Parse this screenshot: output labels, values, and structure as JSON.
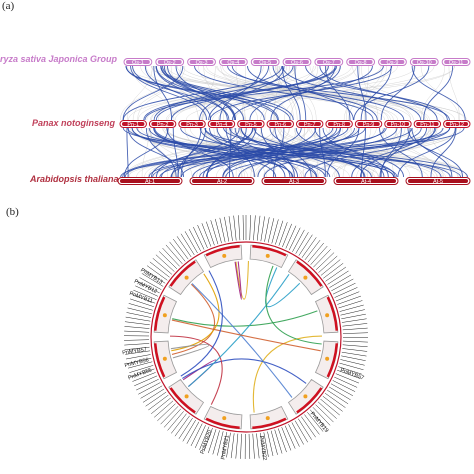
{
  "panel_a": {
    "label": "(a)",
    "species": [
      {
        "name": "Oryza sativa Japonica Group",
        "display": "ryza sativa Japonica Group",
        "color": "#c77bc9"
      },
      {
        "name": "Panax notoginseng",
        "color": "#c0405a"
      },
      {
        "name": "Arabidopsis thaliana",
        "color": "#b03040"
      }
    ],
    "oryza_chromosomes": [
      "Os-1",
      "Os-2",
      "Os-3",
      "Os-4",
      "Os-5",
      "Os-6",
      "Os-7",
      "Os-8",
      "Os-9",
      "Os-10",
      "Os-11"
    ],
    "panax_chromosomes": [
      "Pn-1",
      "Pn-2",
      "Pn-3",
      "Pn-4",
      "Pn-5",
      "Pn-6",
      "Pn-7",
      "Pn-8",
      "Pn-9",
      "Pn-10",
      "Pn-11",
      "Pn-12"
    ],
    "arabidopsis_chromosomes": [
      "At-1",
      "At-2",
      "At-3",
      "At-4",
      "At-5"
    ],
    "link_color": "#2a4aa8"
  },
  "panel_b": {
    "label": "(b)",
    "gene_labels": [
      "PnMYB13",
      "PnMYB12",
      "PnMYB11",
      "PnMYB57",
      "PnMYB56",
      "PnMYB55",
      "PnMYB57",
      "PnMYB19",
      "PnMYB21",
      "PnMYB20",
      "PnMYB22"
    ]
  }
}
